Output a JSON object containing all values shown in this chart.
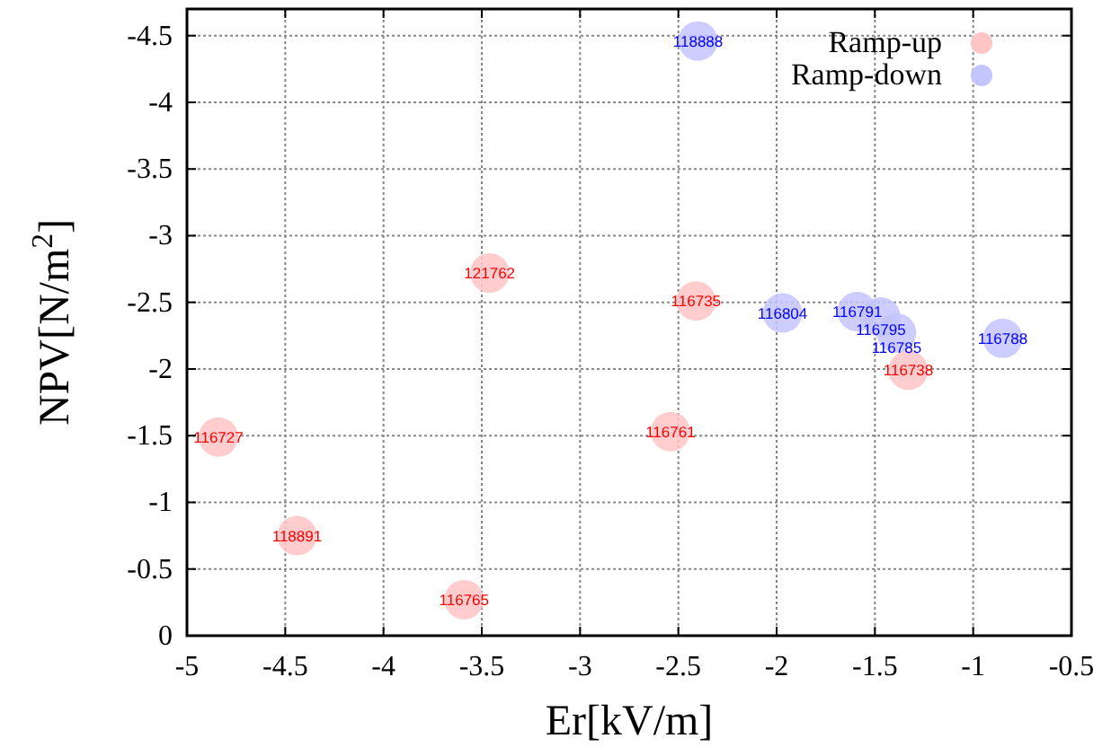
{
  "chart_data": {
    "type": "scatter",
    "xlabel": "Er[kV/m]",
    "ylabel": "NPV[N/m$^{2}$]",
    "xlim": [
      -5,
      -0.5
    ],
    "xticks": [
      -5,
      -4.5,
      -4,
      -3.5,
      -3,
      -2.5,
      -2,
      -1.5,
      -1,
      -0.5
    ],
    "ylim": [
      0,
      -4.7
    ],
    "yticks": [
      0,
      -0.5,
      -1,
      -1.5,
      -2,
      -2.5,
      -3,
      -3.5,
      -4,
      -4.5
    ],
    "grid": true,
    "legend": "top right",
    "marker": "circle",
    "series": [
      {
        "name": "Ramp-up",
        "color": "#ffc4c4",
        "x": [
          -4.84,
          -4.44,
          -3.59,
          -3.46,
          -2.54,
          -2.41,
          -1.33
        ],
        "values": [
          -1.49,
          -0.75,
          -0.27,
          -2.72,
          -1.53,
          -2.51,
          -1.99
        ]
      },
      {
        "name": "Ramp-down",
        "color": "#c4c4ff",
        "x": [
          -2.4,
          -1.97,
          -1.59,
          -1.47,
          -1.39,
          -0.85
        ],
        "values": [
          -4.46,
          -2.42,
          -2.43,
          -2.39,
          -2.27,
          -2.23
        ]
      }
    ],
    "annotations": [
      {
        "text": "116727",
        "x": -4.84,
        "y": -1.49
      },
      {
        "text": "118891",
        "x": -4.44,
        "y": -0.75
      },
      {
        "text": "116765",
        "x": -3.59,
        "y": -0.27
      },
      {
        "text": "121762",
        "x": -3.46,
        "y": -2.72
      },
      {
        "text": "116761",
        "x": -2.54,
        "y": -1.53
      },
      {
        "text": "116735",
        "x": -2.41,
        "y": -2.51
      },
      {
        "text": "116738",
        "x": -1.33,
        "y": -1.99
      },
      {
        "text": "118888",
        "x": -2.4,
        "y": -4.46
      },
      {
        "text": "116804",
        "x": -1.97,
        "y": -2.42
      },
      {
        "text": "116791",
        "x": -1.59,
        "y": -2.43
      },
      {
        "text": "116795",
        "x": -1.47,
        "y": -2.39
      },
      {
        "text": "116785",
        "x": -1.39,
        "y": -2.27
      },
      {
        "text": "116788",
        "x": -0.85,
        "y": -2.23
      }
    ]
  }
}
